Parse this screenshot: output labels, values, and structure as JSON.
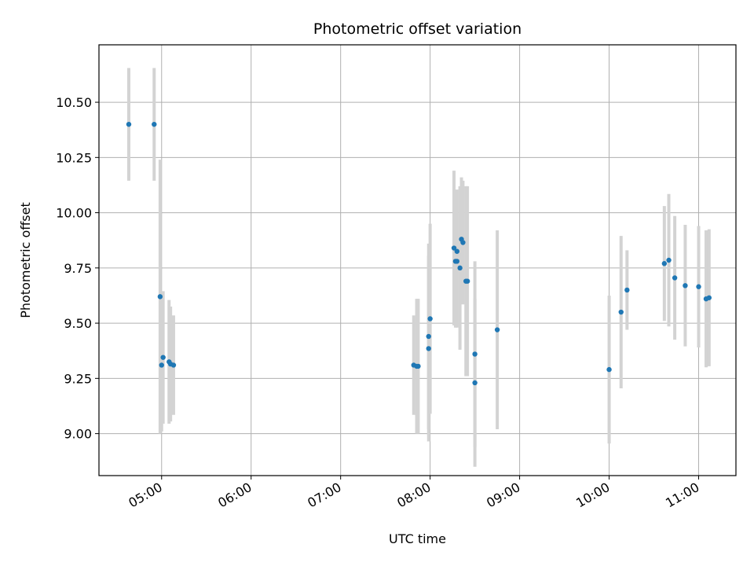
{
  "chart_data": {
    "type": "scatter",
    "title": "Photometric offset variation",
    "xlabel": "UTC time",
    "ylabel": "Photometric offset",
    "xlim": [
      "04:18",
      "11:25"
    ],
    "ylim": [
      8.81,
      10.76
    ],
    "x_ticks": [
      "05:00",
      "06:00",
      "07:00",
      "08:00",
      "09:00",
      "10:00",
      "11:00"
    ],
    "y_ticks": [
      "9.00",
      "9.25",
      "9.50",
      "9.75",
      "10.00",
      "10.25",
      "10.50"
    ],
    "grid": true,
    "colors": {
      "point": "#1f77b4",
      "errorbar": "#d3d3d3",
      "grid": "#b0b0b0"
    },
    "points": [
      {
        "x": "04:38",
        "y": 10.4,
        "yerr": 0.255
      },
      {
        "x": "04:55",
        "y": 10.4,
        "yerr": 0.255
      },
      {
        "x": "04:59",
        "y": 9.62,
        "yerr": 0.62
      },
      {
        "x": "05:00",
        "y": 9.31,
        "yerr": 0.3
      },
      {
        "x": "05:01",
        "y": 9.345,
        "yerr": 0.3
      },
      {
        "x": "05:05",
        "y": 9.325,
        "yerr": 0.28
      },
      {
        "x": "05:06",
        "y": 9.315,
        "yerr": 0.26
      },
      {
        "x": "05:08",
        "y": 9.31,
        "yerr": 0.225
      },
      {
        "x": "07:49",
        "y": 9.31,
        "yerr": 0.225
      },
      {
        "x": "07:51",
        "y": 9.305,
        "yerr": 0.305
      },
      {
        "x": "07:52",
        "y": 9.305,
        "yerr": 0.305
      },
      {
        "x": "07:59",
        "y": 9.385,
        "yerr": 0.42
      },
      {
        "x": "07:59",
        "y": 9.44,
        "yerr": 0.42
      },
      {
        "x": "08:00",
        "y": 9.52,
        "yerr": 0.43
      },
      {
        "x": "08:16",
        "y": 9.84,
        "yerr": 0.35
      },
      {
        "x": "08:17",
        "y": 9.78,
        "yerr": 0.3
      },
      {
        "x": "08:18",
        "y": 9.78,
        "yerr": 0.3
      },
      {
        "x": "08:18",
        "y": 9.825,
        "yerr": 0.28
      },
      {
        "x": "08:20",
        "y": 9.75,
        "yerr": 0.37
      },
      {
        "x": "08:21",
        "y": 9.88,
        "yerr": 0.28
      },
      {
        "x": "08:22",
        "y": 9.865,
        "yerr": 0.28
      },
      {
        "x": "08:24",
        "y": 9.69,
        "yerr": 0.43
      },
      {
        "x": "08:25",
        "y": 9.69,
        "yerr": 0.43
      },
      {
        "x": "08:30",
        "y": 9.36,
        "yerr": 0.42
      },
      {
        "x": "08:30",
        "y": 9.23,
        "yerr": 0.38
      },
      {
        "x": "08:45",
        "y": 9.47,
        "yerr": 0.45
      },
      {
        "x": "10:00",
        "y": 9.29,
        "yerr": 0.335
      },
      {
        "x": "10:08",
        "y": 9.55,
        "yerr": 0.345
      },
      {
        "x": "10:12",
        "y": 9.65,
        "yerr": 0.18
      },
      {
        "x": "10:37",
        "y": 9.77,
        "yerr": 0.26
      },
      {
        "x": "10:40",
        "y": 9.785,
        "yerr": 0.3
      },
      {
        "x": "10:44",
        "y": 9.705,
        "yerr": 0.28
      },
      {
        "x": "10:51",
        "y": 9.67,
        "yerr": 0.275
      },
      {
        "x": "11:00",
        "y": 9.665,
        "yerr": 0.275
      },
      {
        "x": "11:05",
        "y": 9.61,
        "yerr": 0.31
      },
      {
        "x": "11:07",
        "y": 9.615,
        "yerr": 0.31
      }
    ]
  }
}
